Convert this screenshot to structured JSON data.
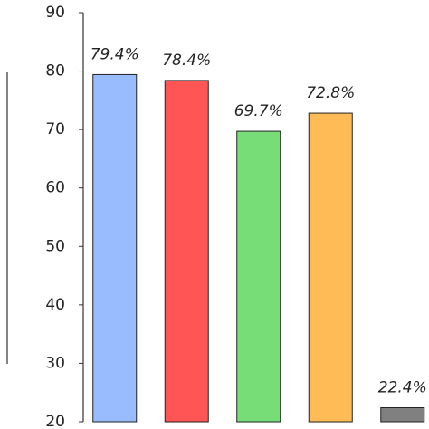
{
  "chart_data": {
    "type": "bar",
    "categories": [
      null,
      null,
      null,
      null,
      null
    ],
    "values": [
      79.4,
      78.4,
      69.7,
      72.8,
      22.4
    ],
    "value_labels": [
      "79.4%",
      "78.4%",
      "69.7%",
      "72.8%",
      "22.4%"
    ],
    "colors": [
      "#99bbff",
      "#ff5555",
      "#77dd77",
      "#ffbb55",
      "#808080"
    ],
    "ylim": [
      20,
      90
    ],
    "yticks": [
      20,
      30,
      40,
      50,
      60,
      70,
      80,
      90
    ],
    "grid": false
  }
}
